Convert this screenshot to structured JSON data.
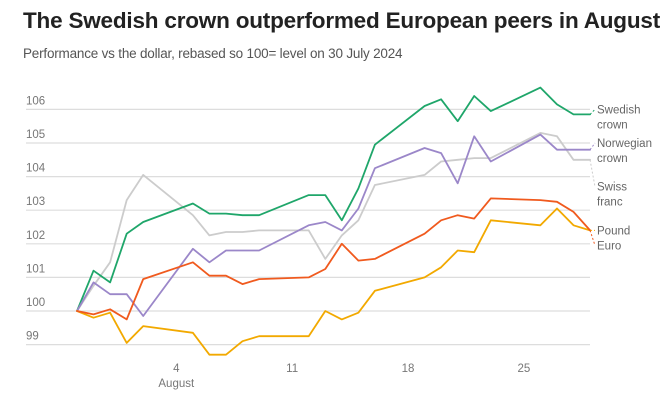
{
  "chart_data": {
    "type": "line",
    "title": "The Swedish crown outperformed European peers in August",
    "subtitle": "Performance vs the dollar, rebased so 100= level on 30 July 2024",
    "xlabel": "",
    "ylabel": "",
    "x_unit": "trading day index (days since 30 July 2024, weekends skipped)",
    "x": [
      0,
      1,
      2,
      3,
      4,
      7,
      8,
      9,
      10,
      11,
      14,
      15,
      16,
      17,
      18,
      21,
      22,
      23,
      24,
      25,
      28,
      29,
      30,
      31
    ],
    "xlim": [
      0,
      31
    ],
    "ylim": [
      98.6,
      106.5
    ],
    "y_ticks": [
      {
        "value": 99,
        "label": "99"
      },
      {
        "value": 100,
        "label": "100"
      },
      {
        "value": 101,
        "label": "101"
      },
      {
        "value": 102,
        "label": "102"
      },
      {
        "value": 103,
        "label": "103"
      },
      {
        "value": 104,
        "label": "104"
      },
      {
        "value": 105,
        "label": "105"
      },
      {
        "value": 106,
        "label": "106"
      }
    ],
    "x_ticks": [
      {
        "value": 6,
        "label": "4",
        "sublabel": "August"
      },
      {
        "value": 13,
        "label": "11",
        "sublabel": ""
      },
      {
        "value": 20,
        "label": "18",
        "sublabel": ""
      },
      {
        "value": 27,
        "label": "25",
        "sublabel": ""
      }
    ],
    "grid": true,
    "legend": "direct labels right",
    "series": [
      {
        "name": "Swiss franc",
        "label_lines": [
          "Swiss",
          "franc"
        ],
        "color": "#cccccc",
        "label_value": 103.7,
        "values": [
          100.0,
          100.75,
          101.45,
          103.3,
          104.05,
          102.85,
          102.25,
          102.35,
          102.35,
          102.4,
          102.4,
          101.55,
          102.25,
          102.7,
          103.75,
          104.05,
          104.45,
          104.5,
          104.55,
          104.55,
          105.3,
          105.2,
          104.5,
          104.5
        ]
      },
      {
        "name": "Swedish crown",
        "label_lines": [
          "Swedish",
          "crown"
        ],
        "color": "#1fa66a",
        "label_value": 106.0,
        "values": [
          100.0,
          101.2,
          100.85,
          102.3,
          102.65,
          103.2,
          102.9,
          102.9,
          102.85,
          102.85,
          103.45,
          103.45,
          102.7,
          103.65,
          104.95,
          106.1,
          106.3,
          105.65,
          106.4,
          105.95,
          106.65,
          106.15,
          105.85,
          105.85
        ]
      },
      {
        "name": "Norwegian crown",
        "label_lines": [
          "Norwegian",
          "crown"
        ],
        "color": "#9b87c9",
        "label_value": 105.0,
        "values": [
          100.0,
          100.85,
          100.5,
          100.5,
          99.85,
          101.85,
          101.45,
          101.8,
          101.8,
          101.8,
          102.55,
          102.65,
          102.4,
          103.05,
          104.25,
          104.85,
          104.7,
          103.8,
          105.2,
          104.45,
          105.25,
          104.8,
          104.8,
          104.8
        ]
      },
      {
        "name": "Pound",
        "label_lines": [
          "Pound"
        ],
        "color": "#f2a900",
        "label_value": 102.4,
        "values": [
          100.0,
          99.8,
          99.95,
          99.05,
          99.55,
          99.35,
          98.7,
          98.7,
          99.1,
          99.25,
          99.25,
          100.0,
          99.75,
          99.95,
          100.6,
          101.0,
          101.3,
          101.8,
          101.75,
          102.7,
          102.55,
          103.05,
          102.55,
          102.4
        ]
      },
      {
        "name": "Euro",
        "label_lines": [
          "Euro"
        ],
        "color": "#f05a1e",
        "label_value": 101.95,
        "values": [
          100.0,
          99.9,
          100.05,
          99.75,
          100.95,
          101.45,
          101.05,
          101.05,
          100.8,
          100.95,
          101.0,
          101.25,
          102.0,
          101.5,
          101.55,
          102.3,
          102.7,
          102.85,
          102.75,
          103.35,
          103.3,
          103.25,
          102.95,
          102.4
        ]
      }
    ]
  }
}
